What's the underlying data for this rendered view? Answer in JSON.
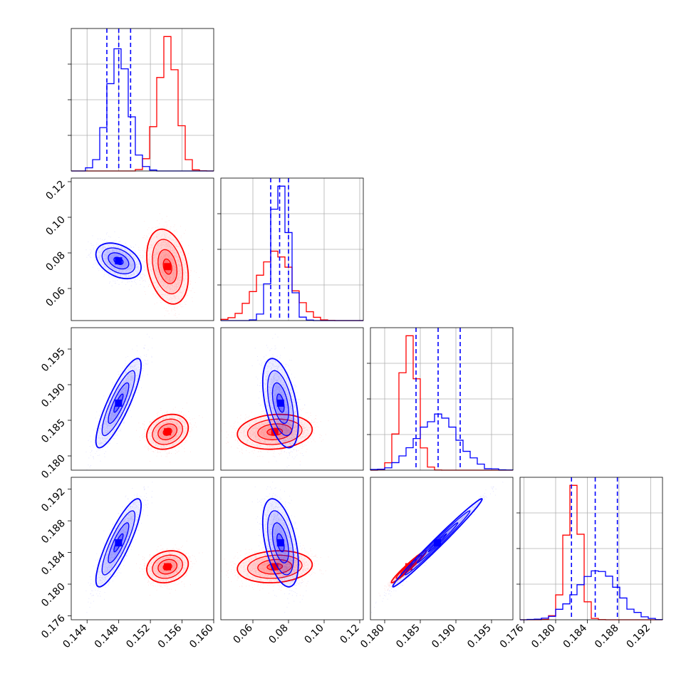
{
  "chart_data": {
    "type": "corner",
    "parameters": 4,
    "grid": true,
    "colors": {
      "red": "#ff0000",
      "blue": "#0000ff",
      "grid": "#b0b0b0"
    },
    "series": [
      {
        "color": "red",
        "means": [
          0.1542,
          0.0725,
          0.1834,
          0.1822
        ],
        "sds": [
          0.0012,
          0.0095,
          0.0011,
          0.0009
        ],
        "corr": [
          [
            1,
            -0.3,
            0.25,
            0.2
          ],
          [
            -0.3,
            1,
            0.1,
            0.1
          ],
          [
            0.25,
            0.1,
            1,
            0.97
          ],
          [
            0.2,
            0.1,
            0.97,
            1
          ]
        ]
      },
      {
        "color": "blue",
        "means": [
          0.148,
          0.0755,
          0.1875,
          0.1853
        ],
        "sds": [
          0.0013,
          0.0045,
          0.0028,
          0.0025
        ],
        "corr": [
          [
            1,
            -0.35,
            0.85,
            0.85
          ],
          [
            -0.35,
            1,
            -0.45,
            -0.45
          ],
          [
            0.85,
            -0.45,
            1,
            0.99
          ],
          [
            0.85,
            -0.45,
            0.99,
            1
          ]
        ]
      }
    ],
    "quantile_lines": [
      [
        0.1465,
        0.148,
        0.1495
      ],
      [
        0.07,
        0.075,
        0.08
      ],
      [
        0.1844,
        0.1875,
        0.1906
      ],
      [
        0.182,
        0.185,
        0.1878
      ]
    ],
    "axes": [
      {
        "range": [
          0.142,
          0.16
        ],
        "ticks": [
          0.144,
          0.148,
          0.152,
          0.156,
          0.16
        ],
        "tick_labels": [
          "0.144",
          "0.148",
          "0.152",
          "0.156",
          "0.160"
        ]
      },
      {
        "range": [
          0.042,
          0.122
        ],
        "ticks": [
          0.06,
          0.08,
          0.1,
          0.12
        ],
        "tick_labels": [
          "0.06",
          "0.08",
          "0.10",
          "0.12"
        ],
        "y_ticks": [
          0.06,
          0.08,
          0.1,
          0.12
        ],
        "y_tick_labels": [
          "0.06",
          "0.08",
          "0.10",
          "0.12"
        ]
      },
      {
        "range": [
          0.178,
          0.198
        ],
        "ticks": [
          0.18,
          0.185,
          0.19,
          0.195
        ],
        "tick_labels": [
          "0.180",
          "0.185",
          "0.190",
          "0.195"
        ]
      },
      {
        "range": [
          0.1755,
          0.1935
        ],
        "ticks": [
          0.176,
          0.18,
          0.184,
          0.188,
          0.192
        ],
        "tick_labels": [
          "0.176",
          "0.180",
          "0.184",
          "0.188",
          "0.192"
        ]
      }
    ]
  }
}
